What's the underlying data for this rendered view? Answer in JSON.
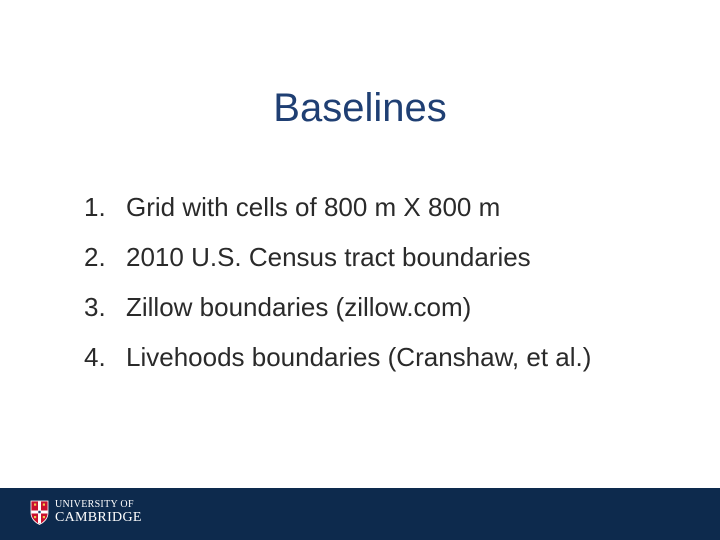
{
  "slide": {
    "title": "Baselines",
    "items": [
      {
        "num": "1.",
        "text": "Grid with cells of 800 m X 800 m"
      },
      {
        "num": "2.",
        "text": "2010 U.S. Census tract boundaries"
      },
      {
        "num": "3.",
        "text": "Zillow boundaries (zillow.com)"
      },
      {
        "num": "4.",
        "text": "Livehoods boundaries (Cranshaw, et al.)"
      }
    ]
  },
  "footer": {
    "logo_line1": "UNIVERSITY OF",
    "logo_line2": "CAMBRIDGE",
    "logo_icon": "university-crest-icon",
    "bar_color": "#0d2a4d"
  },
  "colors": {
    "title": "#1f3f73",
    "body_text": "#2a2a2a",
    "background": "#ffffff"
  }
}
